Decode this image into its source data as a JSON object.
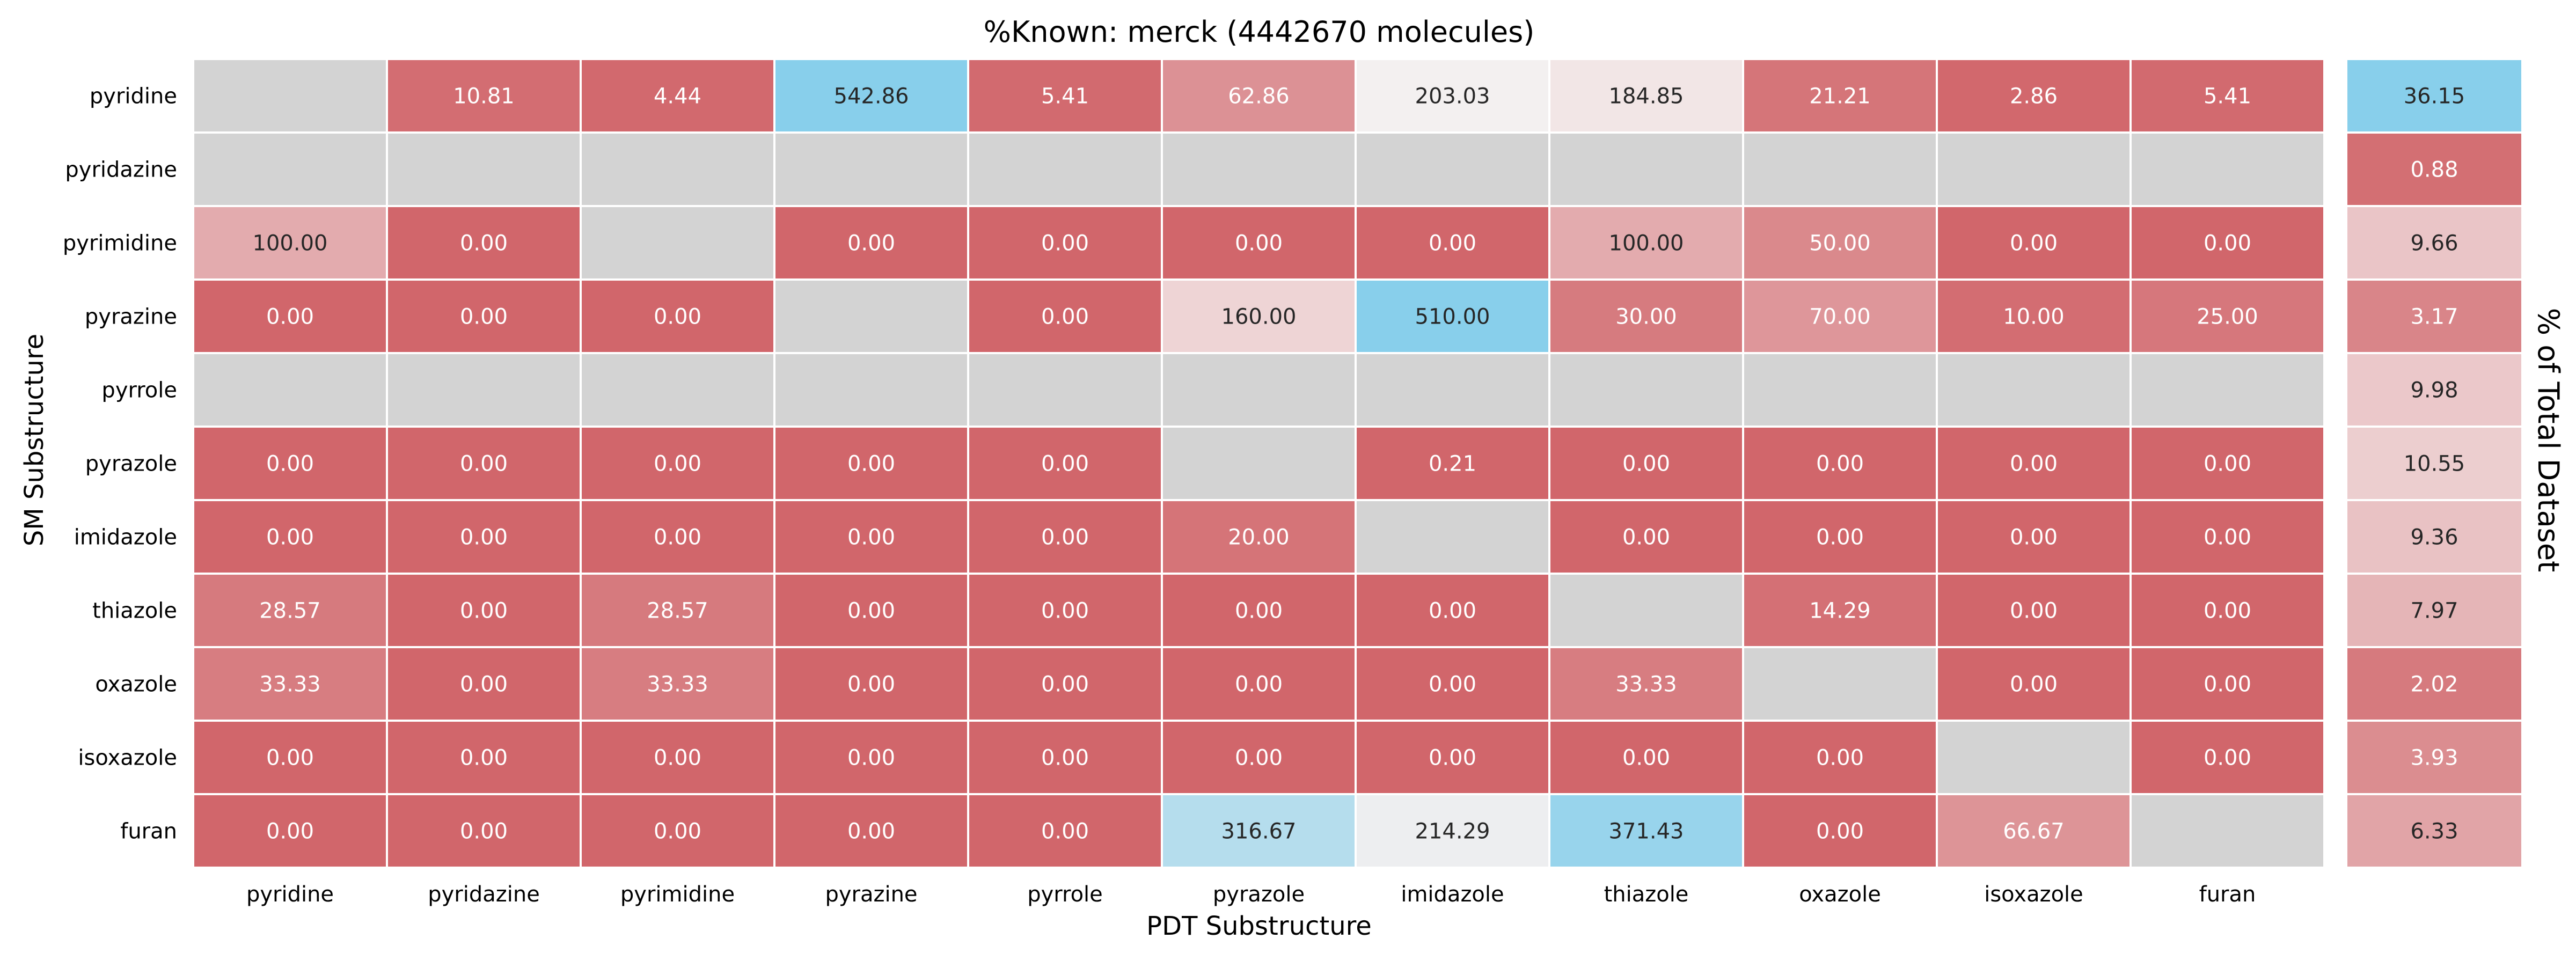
{
  "chart_data": {
    "type": "heatmap",
    "title": "%Known: merck (4442670 molecules)",
    "xlabel": "PDT Substructure",
    "ylabel": "SM Substructure",
    "side_label": "% of Total Dataset",
    "row_labels": [
      "pyridine",
      "pyridazine",
      "pyrimidine",
      "pyrazine",
      "pyrrole",
      "pyrazole",
      "imidazole",
      "thiazole",
      "oxazole",
      "isoxazole",
      "furan"
    ],
    "col_labels": [
      "pyridine",
      "pyridazine",
      "pyrimidine",
      "pyrazine",
      "pyrrole",
      "pyrazole",
      "imidazole",
      "thiazole",
      "oxazole",
      "isoxazole",
      "furan"
    ],
    "values": [
      [
        null,
        10.81,
        4.44,
        542.86,
        5.41,
        62.86,
        203.03,
        184.85,
        21.21,
        2.86,
        5.41
      ],
      [
        null,
        null,
        null,
        null,
        null,
        null,
        null,
        null,
        null,
        null,
        null
      ],
      [
        100.0,
        0.0,
        null,
        0.0,
        0.0,
        0.0,
        0.0,
        100.0,
        50.0,
        0.0,
        0.0
      ],
      [
        0.0,
        0.0,
        0.0,
        null,
        0.0,
        160.0,
        510.0,
        30.0,
        70.0,
        10.0,
        25.0
      ],
      [
        null,
        null,
        null,
        null,
        null,
        null,
        null,
        null,
        null,
        null,
        null
      ],
      [
        0.0,
        0.0,
        0.0,
        0.0,
        0.0,
        null,
        0.21,
        0.0,
        0.0,
        0.0,
        0.0
      ],
      [
        0.0,
        0.0,
        0.0,
        0.0,
        0.0,
        20.0,
        null,
        0.0,
        0.0,
        0.0,
        0.0
      ],
      [
        28.57,
        0.0,
        28.57,
        0.0,
        0.0,
        0.0,
        0.0,
        null,
        14.29,
        0.0,
        0.0
      ],
      [
        33.33,
        0.0,
        33.33,
        0.0,
        0.0,
        0.0,
        0.0,
        33.33,
        null,
        0.0,
        0.0
      ],
      [
        0.0,
        0.0,
        0.0,
        0.0,
        0.0,
        0.0,
        0.0,
        0.0,
        0.0,
        null,
        0.0
      ],
      [
        0.0,
        0.0,
        0.0,
        0.0,
        0.0,
        316.67,
        214.29,
        371.43,
        0.0,
        66.67,
        null
      ]
    ],
    "side_values": [
      36.15,
      0.88,
      9.66,
      3.17,
      9.98,
      10.55,
      9.36,
      7.97,
      2.02,
      3.93,
      6.33
    ],
    "main_scale": {
      "low": 0,
      "center": 200,
      "high": 400
    },
    "side_scale": {
      "low": 0,
      "center": 14,
      "high": 28
    },
    "colors": {
      "low": "#d1666b",
      "center": "#f5f0f0",
      "high": "#88cfeb",
      "missing": "#d3d3d3",
      "grid": "#ffffff",
      "text_dark": "#262626",
      "text_light": "#ffffff"
    }
  }
}
